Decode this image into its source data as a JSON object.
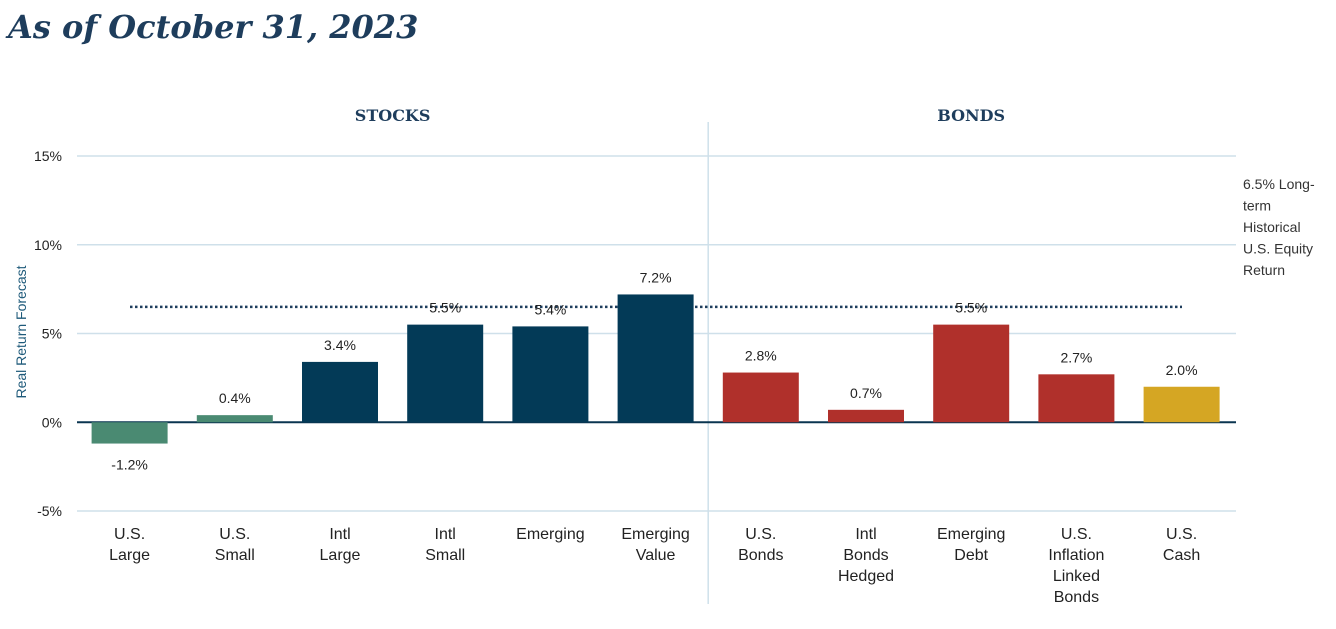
{
  "title": "As of October 31, 2023",
  "chart_data": {
    "type": "bar",
    "ylabel": "Real Return Forecast",
    "ylim": [
      -5,
      15
    ],
    "yticks": [
      "15%",
      "10%",
      "5%",
      "0%",
      "-5%"
    ],
    "ytick_values": [
      15,
      10,
      5,
      0,
      -5
    ],
    "groups": [
      {
        "label": "STOCKS",
        "first": 0,
        "last": 5
      },
      {
        "label": "BONDS",
        "first": 6,
        "last": 10
      }
    ],
    "categories": [
      [
        "U.S.",
        "Large"
      ],
      [
        "U.S.",
        "Small"
      ],
      [
        "Intl",
        "Large"
      ],
      [
        "Intl",
        "Small"
      ],
      [
        "Emerging"
      ],
      [
        "Emerging",
        "Value"
      ],
      [
        "U.S.",
        "Bonds"
      ],
      [
        "Intl",
        "Bonds",
        "Hedged"
      ],
      [
        "Emerging",
        "Debt"
      ],
      [
        "U.S.",
        "Inflation",
        "Linked",
        "Bonds"
      ],
      [
        "U.S.",
        "Cash"
      ]
    ],
    "values": [
      -1.2,
      0.4,
      3.4,
      5.5,
      5.4,
      7.2,
      2.8,
      0.7,
      5.5,
      2.7,
      2.0
    ],
    "value_labels": [
      "-1.2%",
      "0.4%",
      "3.4%",
      "5.5%",
      "5.4%",
      "7.2%",
      "2.8%",
      "0.7%",
      "5.5%",
      "2.7%",
      "2.0%"
    ],
    "colors": [
      "#4a8a72",
      "#4a8a72",
      "#033a57",
      "#033a57",
      "#033a57",
      "#033a57",
      "#b0302b",
      "#b0302b",
      "#b0302b",
      "#b0302b",
      "#d5a623"
    ],
    "reference_line": {
      "value": 6.5,
      "label": [
        "6.5% Long-",
        "term",
        "Historical",
        "U.S. Equity",
        "Return"
      ],
      "style": "dotted",
      "color": "#1e3d5c"
    },
    "grid": true
  }
}
